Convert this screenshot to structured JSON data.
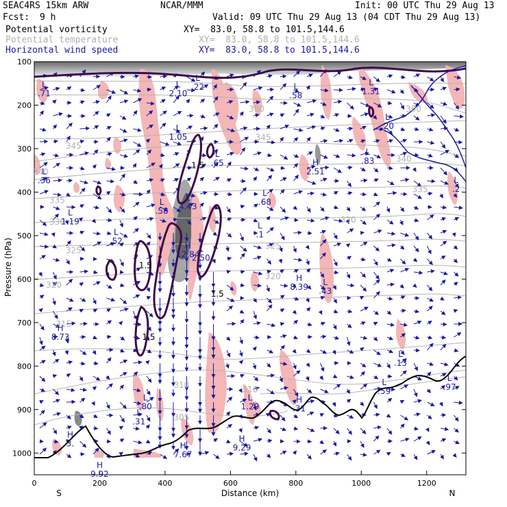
{
  "header": {
    "model": "SEAC4RS 15km ARW",
    "org": "NCAR/MMM",
    "init": "Init: 00 UTC Thu 29 Aug 13",
    "fcst_label": "Fcst:",
    "fcst_value": "9 h",
    "valid": "Valid: 09 UTC Thu 29 Aug 13 (04 CDT Thu 29 Aug 13)"
  },
  "fields": [
    {
      "name": "Potential vorticity",
      "xy": "XY=  83.0, 58.8 to 101.5,144.6"
    },
    {
      "name": "Potential temperature",
      "xy": "XY=  83.0, 58.8 to 101.5,144.6"
    },
    {
      "name": "Horizontal wind speed",
      "xy": "XY=  83.0, 58.8 to 101.5,144.6"
    }
  ],
  "colors": {
    "pv_contour": "#3d0a4a",
    "theta_contour": "#b4b4b4",
    "wind_vector": "#1a1aa0",
    "pv_shade": "#f4b6b6",
    "terrain": "#000000",
    "map_lines": "#1a1aa0"
  },
  "chart_data": {
    "type": "vertical cross-section",
    "xlabel": "Distance (km)",
    "ylabel": "Pressure (hPa)",
    "xlim": [
      0,
      1320
    ],
    "ylim": [
      1050,
      100
    ],
    "x_ticks": [
      "0",
      "200",
      "400",
      "600",
      "800",
      "1000",
      "1200"
    ],
    "y_ticks": [
      "100",
      "200",
      "300",
      "400",
      "500",
      "600",
      "700",
      "800",
      "900",
      "1000"
    ],
    "end_labels": {
      "left": "S",
      "right": "N"
    },
    "theta_labels": [
      {
        "text": "345",
        "x": 120,
        "p": 300
      },
      {
        "text": "340",
        "x": 20,
        "p": 360
      },
      {
        "text": "335",
        "x": 70,
        "p": 425
      },
      {
        "text": "330",
        "x": 70,
        "p": 475
      },
      {
        "text": "325",
        "x": 120,
        "p": 540
      },
      {
        "text": "320",
        "x": 60,
        "p": 620
      },
      {
        "text": "315",
        "x": 90,
        "p": 710
      },
      {
        "text": "350",
        "x": 680,
        "p": 215
      },
      {
        "text": "345",
        "x": 700,
        "p": 280
      },
      {
        "text": "340",
        "x": 1130,
        "p": 330
      },
      {
        "text": "335",
        "x": 1180,
        "p": 400
      },
      {
        "text": "330",
        "x": 960,
        "p": 470
      },
      {
        "text": "325",
        "x": 730,
        "p": 530
      },
      {
        "text": "320",
        "x": 730,
        "p": 600
      },
      {
        "text": "310",
        "x": 450,
        "p": 850
      },
      {
        "text": "305",
        "x": 450,
        "p": 925
      },
      {
        "text": "310",
        "x": 660,
        "p": 860
      },
      {
        "text": "300",
        "x": 1160,
        "p": 215
      }
    ],
    "pv_labels": [
      {
        "text": "1.5",
        "x": 500,
        "p": 345
      },
      {
        "text": "1.5",
        "x": 340,
        "p": 575
      },
      {
        "text": "1.5",
        "x": 560,
        "p": 640
      },
      {
        "text": "1.5",
        "x": 350,
        "p": 740
      }
    ],
    "extrema": [
      {
        "kind": "L",
        "value": "2.10",
        "x": 440,
        "p": 170
      },
      {
        "kind": "L",
        "value": ".22",
        "x": 500,
        "p": 155
      },
      {
        "kind": "L",
        "value": ".71",
        "x": 30,
        "p": 170
      },
      {
        "kind": "L",
        "value": ".58",
        "x": 800,
        "p": 175
      },
      {
        "kind": "L",
        "value": "1.31",
        "x": 1030,
        "p": 165
      },
      {
        "kind": "L",
        "value": "1.05",
        "x": 440,
        "p": 270
      },
      {
        "kind": "L",
        "value": ".20",
        "x": 1080,
        "p": 245
      },
      {
        "kind": "L",
        "value": ".65",
        "x": 560,
        "p": 330
      },
      {
        "kind": "H",
        "value": "2.51",
        "x": 860,
        "p": 350
      },
      {
        "kind": "L",
        "value": ".83",
        "x": 1020,
        "p": 325
      },
      {
        "kind": "L",
        "value": ".36",
        "x": 30,
        "p": 370
      },
      {
        "kind": "L",
        "value": ".2",
        "x": 1290,
        "p": 390
      },
      {
        "kind": "L",
        "value": ".58",
        "x": 390,
        "p": 440
      },
      {
        "kind": "L",
        "value": "4.43",
        "x": 470,
        "p": 430
      },
      {
        "kind": "L",
        "value": ".68",
        "x": 705,
        "p": 420
      },
      {
        "kind": "L",
        "value": "1.19",
        "x": 110,
        "p": 465
      },
      {
        "kind": "L",
        "value": ".52",
        "x": 250,
        "p": 510
      },
      {
        "kind": "L",
        "value": ".1",
        "x": 690,
        "p": 495
      },
      {
        "kind": "H",
        "value": "12.84",
        "x": 470,
        "p": 540
      },
      {
        "kind": "L",
        "value": "2.50",
        "x": 510,
        "p": 548
      },
      {
        "kind": "H",
        "value": "8.39",
        "x": 810,
        "p": 615
      },
      {
        "kind": "L",
        "value": ".43",
        "x": 890,
        "p": 625
      },
      {
        "kind": "H",
        "value": "8.73",
        "x": 80,
        "p": 730
      },
      {
        "kind": "L",
        "value": ".13",
        "x": 1120,
        "p": 790
      },
      {
        "kind": "L",
        "value": ".59",
        "x": 1070,
        "p": 855
      },
      {
        "kind": "L",
        "value": ".97",
        "x": 1270,
        "p": 845
      },
      {
        "kind": "L",
        "value": ".80",
        "x": 340,
        "p": 890
      },
      {
        "kind": "L",
        "value": "1.29",
        "x": 660,
        "p": 890
      },
      {
        "kind": "L",
        "value": ".31",
        "x": 320,
        "p": 925
      },
      {
        "kind": "H",
        "value": ".31",
        "x": 810,
        "p": 895
      },
      {
        "kind": "H",
        "value": "3.",
        "x": 110,
        "p": 975
      },
      {
        "kind": "H",
        "value": "9.29",
        "x": 635,
        "p": 985
      },
      {
        "kind": "H",
        "value": "7.67",
        "x": 455,
        "p": 1000
      },
      {
        "kind": "H",
        "value": "9.92",
        "x": 200,
        "p": 1045
      }
    ]
  }
}
